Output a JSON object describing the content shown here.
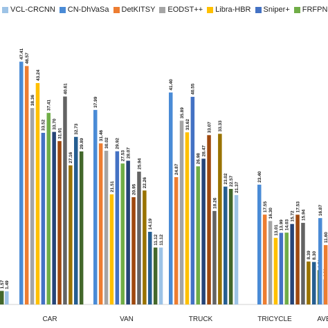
{
  "chart_data": {
    "type": "bar",
    "categories": [
      "CAR",
      "VAN",
      "TRUCK",
      "TRICYCLE",
      "AVE"
    ],
    "legend_position": "top",
    "grid": false,
    "ylim": [
      0,
      50
    ],
    "series": [
      {
        "name": "VCL-CRCNN",
        "color": "#9dc3e6",
        "values": [
          null,
          11.12,
          21.37,
          4.91,
          null
        ]
      },
      {
        "name": "CN-DhVaSa",
        "color": "#4a8bd6",
        "values": [
          47.41,
          37.99,
          41.4,
          23.4,
          16.87
        ]
      },
      {
        "name": "DetKITSY",
        "color": "#ed7d31",
        "values": [
          46.57,
          31.46,
          24.87,
          17.55,
          11.6
        ]
      },
      {
        "name": "EODST++",
        "color": "#a5a5a5",
        "values": [
          38.36,
          30.02,
          35.89,
          16.3,
          null
        ]
      },
      {
        "name": "Libra-HBR",
        "color": "#ffc000",
        "values": [
          43.24,
          21.51,
          33.62,
          13.01,
          null
        ]
      },
      {
        "name": "Sniper+",
        "color": "#4472c4",
        "values": [
          33.52,
          29.92,
          40.55,
          13.99,
          null
        ]
      },
      {
        "name": "FRFPN",
        "color": "#70ad47",
        "values": [
          37.41,
          27.53,
          26.98,
          14.03,
          null
        ]
      },
      {
        "name": "",
        "color": "#264478",
        "values": [
          33.7,
          28.07,
          28.47,
          15.72,
          null
        ]
      },
      {
        "name": "",
        "color": "#9e480e",
        "values": [
          31.91,
          20.95,
          33.07,
          17.53,
          null
        ]
      },
      {
        "name": "",
        "color": "#636363",
        "values": [
          40.61,
          25.94,
          18.26,
          15.94,
          null
        ]
      },
      {
        "name": "",
        "color": "#997300",
        "values": [
          27.16,
          22.26,
          33.33,
          8.39,
          null
        ]
      },
      {
        "name": "",
        "color": "#255e91",
        "values": [
          32.73,
          14.19,
          23.02,
          8.3,
          null
        ]
      },
      {
        "name": "",
        "color": "#43682b",
        "values": [
          29.89,
          11.12,
          22.57,
          6.71,
          null
        ]
      }
    ],
    "partial_left_labels": [
      "1.57",
      "1.49"
    ]
  }
}
